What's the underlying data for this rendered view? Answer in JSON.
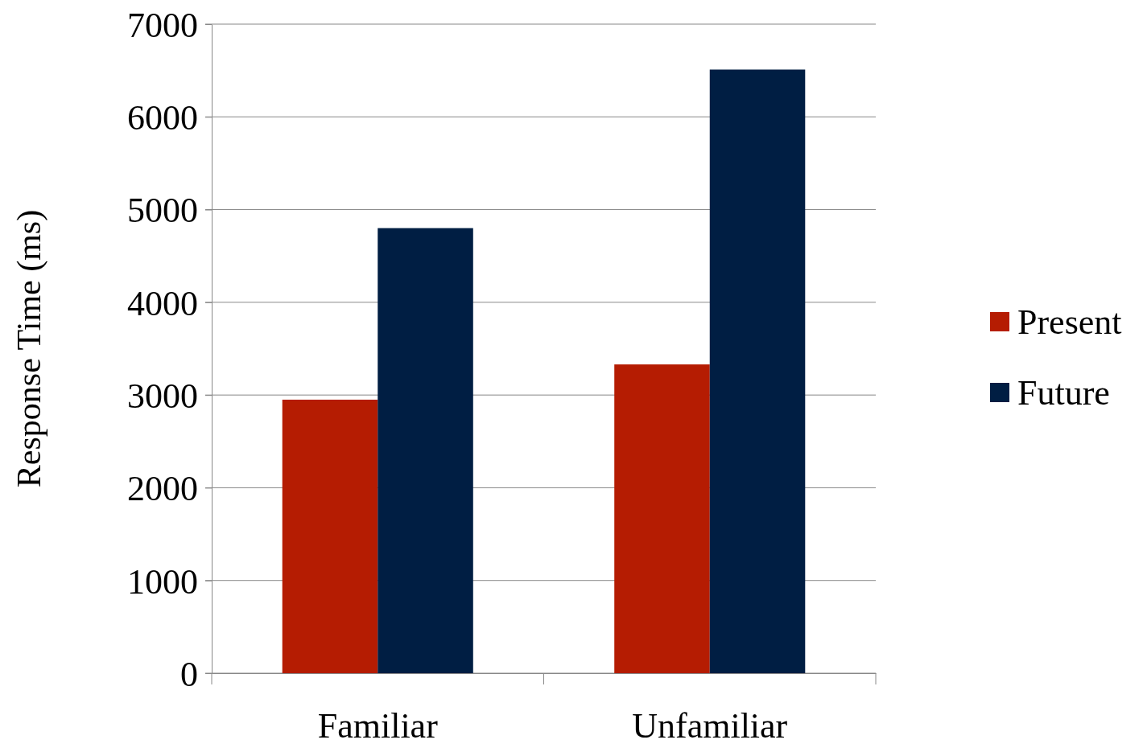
{
  "chart_data": {
    "type": "bar",
    "ylabel": "Response Time (ms)",
    "categories": [
      "Familiar",
      "Unfamiliar"
    ],
    "series": [
      {
        "name": "Present",
        "color": "#b51c02",
        "values": [
          2950,
          3330
        ]
      },
      {
        "name": "Future",
        "color": "#001e43",
        "values": [
          4800,
          6510
        ]
      }
    ],
    "ylim": [
      0,
      7000
    ],
    "yticks": [
      0,
      1000,
      2000,
      3000,
      4000,
      5000,
      6000,
      7000
    ],
    "grid": "y",
    "legend": "right"
  }
}
